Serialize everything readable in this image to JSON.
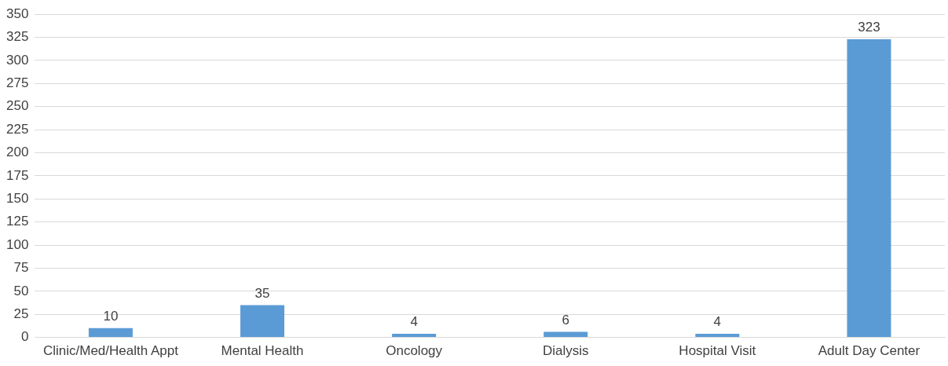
{
  "chart_data": {
    "type": "bar",
    "categories": [
      "Clinic/Med/Health Appt",
      "Mental Health",
      "Oncology",
      "Dialysis",
      "Hospital Visit",
      "Adult Day Center"
    ],
    "values": [
      10,
      35,
      4,
      6,
      4,
      323
    ],
    "color": "#5b9bd5",
    "ylim": [
      0,
      350
    ],
    "yticks": [
      0,
      25,
      50,
      75,
      100,
      125,
      150,
      175,
      200,
      225,
      250,
      275,
      300,
      325,
      350
    ],
    "grid": "y",
    "data_labels": true
  }
}
